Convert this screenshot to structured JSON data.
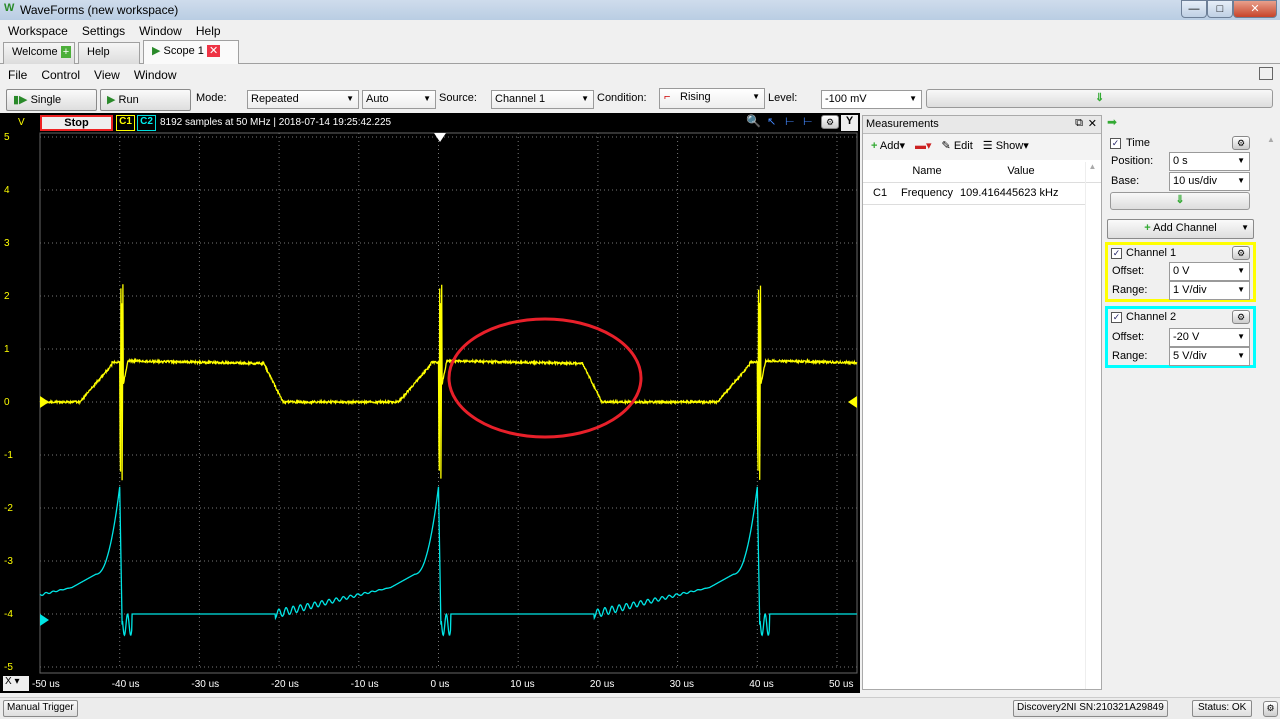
{
  "window": {
    "title": "WaveForms  (new workspace)",
    "min": "—",
    "max": "□",
    "close": "✕"
  },
  "main_menu": [
    "Workspace",
    "Settings",
    "Window",
    "Help"
  ],
  "tabs": [
    {
      "label": "Welcome"
    },
    {
      "label": "Help"
    },
    {
      "label": "Scope 1"
    }
  ],
  "scope_menu": [
    "File",
    "Control",
    "View",
    "Window"
  ],
  "toolbar": {
    "single": "Single",
    "run": "Run",
    "mode_label": "Mode:",
    "mode": "Repeated",
    "auto": "Auto",
    "source_label": "Source:",
    "source": "Channel 1",
    "condition_label": "Condition:",
    "condition": "Rising",
    "level_label": "Level:",
    "level": "-100 mV"
  },
  "plot": {
    "y_unit": "V",
    "stop": "Stop",
    "c1": "C1",
    "c2": "C2",
    "info": "8192 samples at 50 MHz | 2018-07-14 19:25:42.225",
    "y_btn": "Y",
    "x_btn": "X",
    "y_ticks": [
      "5",
      "4",
      "3",
      "2",
      "1",
      "0",
      "-1",
      "-2",
      "-3",
      "-4",
      "-5"
    ],
    "x_ticks": [
      "-50 us",
      "-40 us",
      "-30 us",
      "-20 us",
      "-10 us",
      "0 us",
      "10 us",
      "20 us",
      "30 us",
      "40 us",
      "50 us"
    ],
    "colors": {
      "ch1": "#ffff00",
      "ch2": "#00e5e5",
      "annotation": "#e8202a"
    }
  },
  "measurements": {
    "title": "Measurements",
    "add": "Add",
    "edit": "Edit",
    "show": "Show",
    "col_name": "Name",
    "col_value": "Value",
    "rows": [
      {
        "ch": "C1",
        "name": "Frequency",
        "value": "109.416445623 kHz"
      }
    ]
  },
  "time": {
    "label": "Time",
    "position_label": "Position:",
    "position": "0 s",
    "base_label": "Base:",
    "base": "10 us/div"
  },
  "add_channel": "Add Channel",
  "channels": [
    {
      "label": "Channel 1",
      "offset_label": "Offset:",
      "offset": "0 V",
      "range_label": "Range:",
      "range": "1 V/div",
      "color": "#ffff00"
    },
    {
      "label": "Channel 2",
      "offset_label": "Offset:",
      "offset": "-20 V",
      "range_label": "Range:",
      "range": "5 V/div",
      "color": "#00ffff"
    }
  ],
  "status": {
    "manual_trigger": "Manual Trigger",
    "device": "Discovery2NI SN:210321A29849",
    "state": "Status: OK"
  }
}
